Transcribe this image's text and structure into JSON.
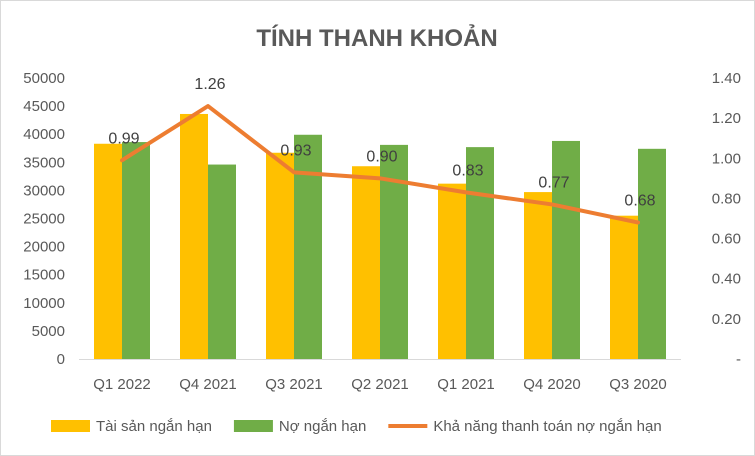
{
  "chart_data": {
    "type": "bar",
    "title": "TÍNH THANH KHOẢN",
    "categories": [
      "Q1 2022",
      "Q4 2021",
      "Q3 2021",
      "Q2 2021",
      "Q1 2021",
      "Q4 2020",
      "Q3 2020"
    ],
    "series": [
      {
        "name": "Tài sản ngắn hạn",
        "type": "bar",
        "axis": "left",
        "color": "#FFC000",
        "values": [
          38300,
          43600,
          36700,
          34300,
          31200,
          29700,
          25500
        ]
      },
      {
        "name": "Nợ ngắn hạn",
        "type": "bar",
        "axis": "left",
        "color": "#70AD47",
        "values": [
          38600,
          34600,
          39900,
          38100,
          37700,
          38800,
          37400
        ]
      },
      {
        "name": "Khả năng thanh toán nợ ngắn hạn",
        "type": "line",
        "axis": "right",
        "color": "#ED7D31",
        "values": [
          0.99,
          1.26,
          0.93,
          0.9,
          0.83,
          0.77,
          0.68
        ],
        "labels": [
          "0.99",
          "1.26",
          "0.93",
          "0.90",
          "0.83",
          "0.77",
          "0.68"
        ]
      }
    ],
    "y_left": {
      "min": 0,
      "max": 50000,
      "ticks": [
        "0",
        "5000",
        "10000",
        "15000",
        "20000",
        "25000",
        "30000",
        "35000",
        "40000",
        "45000",
        "50000"
      ]
    },
    "y_right": {
      "min": 0,
      "max": 1.4,
      "ticks": [
        "-",
        "0.20",
        "0.40",
        "0.60",
        "0.80",
        "1.00",
        "1.20",
        "1.40"
      ]
    },
    "grid": false,
    "legend": "bottom"
  }
}
